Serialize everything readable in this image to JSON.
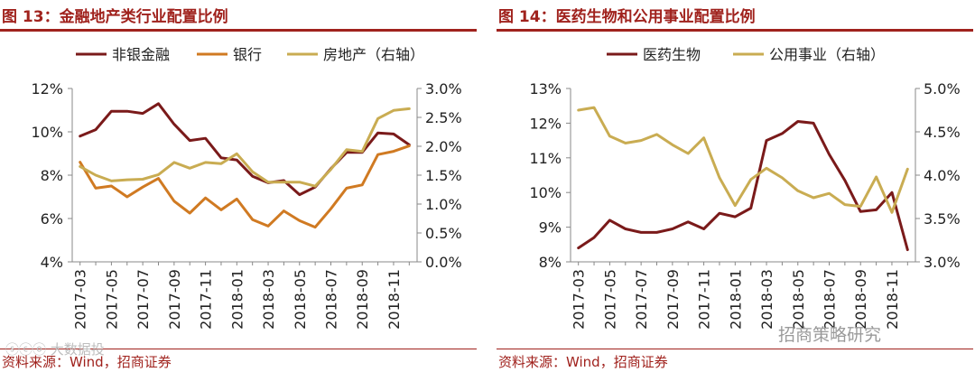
{
  "colors": {
    "accent": "#a0221d",
    "dark_red": "#7a1a1a",
    "orange": "#d07a22",
    "gold": "#c9ac52",
    "watermark": "#bdbdbd"
  },
  "left": {
    "title": "图 13：金融地产类行业配置比例",
    "source": "资料来源：Wind，招商证券"
  },
  "right": {
    "title": "图 14：医药生物和公用事业配置比例",
    "source": "资料来源：Wind，招商证券"
  },
  "watermark": {
    "left": "ⓢⓒⓞ 大数据投",
    "right": "招商策略研究"
  },
  "chart_data": [
    {
      "type": "line",
      "title": "金融地产类行业配置比例",
      "x": [
        "2017-03",
        "2017-04",
        "2017-05",
        "2017-06",
        "2017-07",
        "2017-08",
        "2017-09",
        "2017-10",
        "2017-11",
        "2017-12",
        "2018-01",
        "2018-02",
        "2018-03",
        "2018-04",
        "2018-05",
        "2018-06",
        "2018-07",
        "2018-08",
        "2018-09",
        "2018-10",
        "2018-11",
        "2018-12"
      ],
      "tick_labels": [
        "2017-03",
        "2017-05",
        "2017-07",
        "2017-09",
        "2017-11",
        "2018-01",
        "2018-03",
        "2018-05",
        "2018-07",
        "2018-09",
        "2018-11"
      ],
      "ylim": [
        4,
        12
      ],
      "yticks": [
        "4%",
        "6%",
        "8%",
        "10%",
        "12%"
      ],
      "y2lim": [
        0,
        3
      ],
      "y2ticks": [
        "0.0%",
        "0.5%",
        "1.0%",
        "1.5%",
        "2.0%",
        "2.5%",
        "3.0%"
      ],
      "legend": "top",
      "series": [
        {
          "name": "非银金融",
          "axis": "left",
          "color": "#7a1a1a",
          "values": [
            9.8,
            10.1,
            10.95,
            10.95,
            10.85,
            11.3,
            10.35,
            9.6,
            9.7,
            8.8,
            8.7,
            7.95,
            7.65,
            7.75,
            7.1,
            7.45,
            8.3,
            9.05,
            9.05,
            9.95,
            9.9,
            9.4
          ]
        },
        {
          "name": "银行",
          "axis": "left",
          "color": "#d07a22",
          "values": [
            8.6,
            7.4,
            7.5,
            7.0,
            7.45,
            7.85,
            6.8,
            6.25,
            6.95,
            6.4,
            6.9,
            5.95,
            5.65,
            6.35,
            5.9,
            5.6,
            6.45,
            7.4,
            7.55,
            8.95,
            9.1,
            9.35
          ]
        },
        {
          "name": "房地产（右轴）",
          "axis": "right",
          "color": "#c9ac52",
          "values": [
            1.65,
            1.5,
            1.4,
            1.42,
            1.43,
            1.51,
            1.72,
            1.62,
            1.72,
            1.7,
            1.87,
            1.56,
            1.38,
            1.38,
            1.38,
            1.31,
            1.6,
            1.94,
            1.91,
            2.48,
            2.62,
            2.65
          ]
        }
      ]
    },
    {
      "type": "line",
      "title": "医药生物和公用事业配置比例",
      "x": [
        "2017-03",
        "2017-04",
        "2017-05",
        "2017-06",
        "2017-07",
        "2017-08",
        "2017-09",
        "2017-10",
        "2017-11",
        "2017-12",
        "2018-01",
        "2018-02",
        "2018-03",
        "2018-04",
        "2018-05",
        "2018-06",
        "2018-07",
        "2018-08",
        "2018-09",
        "2018-10",
        "2018-11",
        "2018-12"
      ],
      "tick_labels": [
        "2017-03",
        "2017-05",
        "2017-07",
        "2017-09",
        "2017-11",
        "2018-01",
        "2018-03",
        "2018-05",
        "2018-07",
        "2018-09",
        "2018-11"
      ],
      "ylim": [
        8,
        13
      ],
      "yticks": [
        "8%",
        "9%",
        "10%",
        "11%",
        "12%",
        "13%"
      ],
      "y2lim": [
        3,
        5
      ],
      "y2ticks": [
        "3.0%",
        "3.5%",
        "4.0%",
        "4.5%",
        "5.0%"
      ],
      "legend": "top",
      "series": [
        {
          "name": "医药生物",
          "axis": "left",
          "color": "#7a1a1a",
          "values": [
            8.4,
            8.7,
            9.2,
            8.95,
            8.85,
            8.85,
            8.95,
            9.15,
            8.95,
            9.4,
            9.3,
            9.55,
            11.5,
            11.7,
            12.05,
            12.0,
            11.1,
            10.35,
            9.45,
            9.5,
            10.0,
            8.35
          ]
        },
        {
          "name": "公用事业（右轴）",
          "axis": "right",
          "color": "#c9ac52",
          "values": [
            4.75,
            4.78,
            4.45,
            4.37,
            4.4,
            4.47,
            4.35,
            4.25,
            4.43,
            3.97,
            3.65,
            3.95,
            4.08,
            3.97,
            3.82,
            3.74,
            3.79,
            3.66,
            3.64,
            3.98,
            3.57,
            4.07
          ]
        }
      ]
    }
  ]
}
